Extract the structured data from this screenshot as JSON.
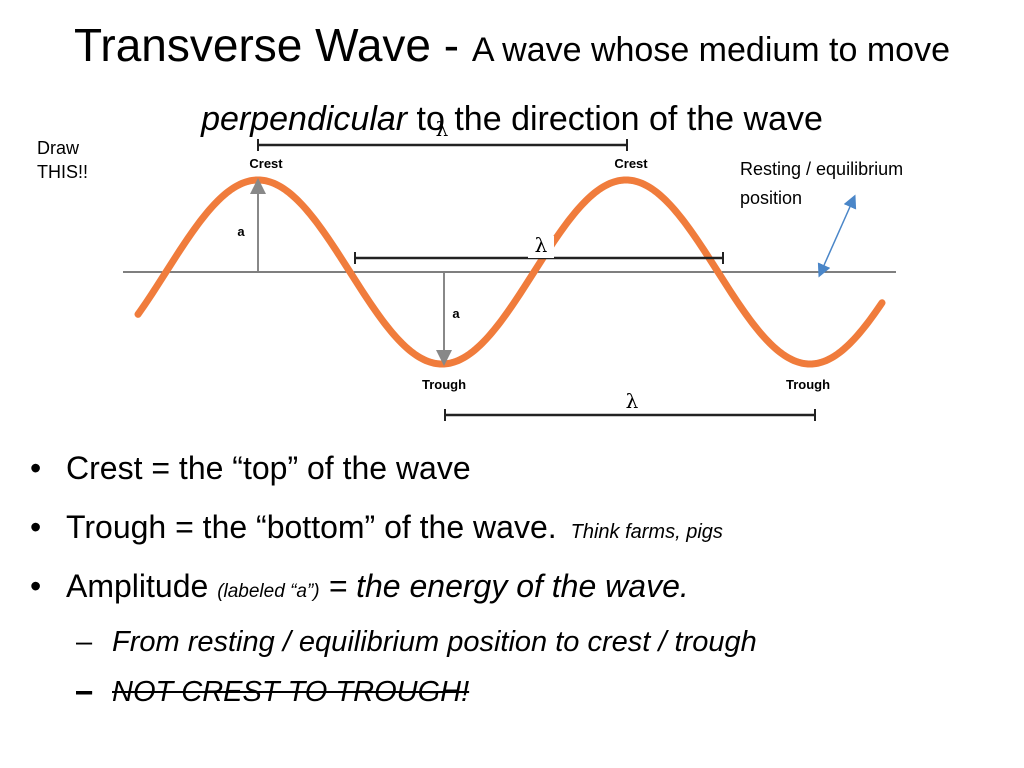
{
  "title": {
    "main": "Transverse Wave - ",
    "part1": "A wave whose medium to move ",
    "italic": "perpendicular",
    "part2": " to the direction of the wave"
  },
  "draw_note": {
    "line1": "Draw",
    "line2": "THIS!!"
  },
  "diagram": {
    "crest_label": "Crest",
    "trough_label": "Trough",
    "wavelength_symbol": "λ",
    "amplitude_label": "a",
    "equilibrium_note": {
      "line1": "Resting / equilibrium",
      "line2": "position"
    },
    "colors": {
      "wave": "#f07c3c",
      "axis": "#555555",
      "annotation_arrow": "#4a86c8"
    }
  },
  "bullets": [
    {
      "text": "Crest = the “top” of the wave"
    },
    {
      "text": "Trough = the “bottom” of the wave.",
      "aside": "Think farms, pigs"
    },
    {
      "text": "Amplitude ",
      "paren": "(labeled “a”)",
      "emph": " = the energy of the wave."
    }
  ],
  "sub_bullets": [
    {
      "dash": "–",
      "text": "From resting / equilibrium position to crest / trough"
    },
    {
      "dash": "–",
      "text": "NOT CREST TO TROUGH!"
    }
  ]
}
